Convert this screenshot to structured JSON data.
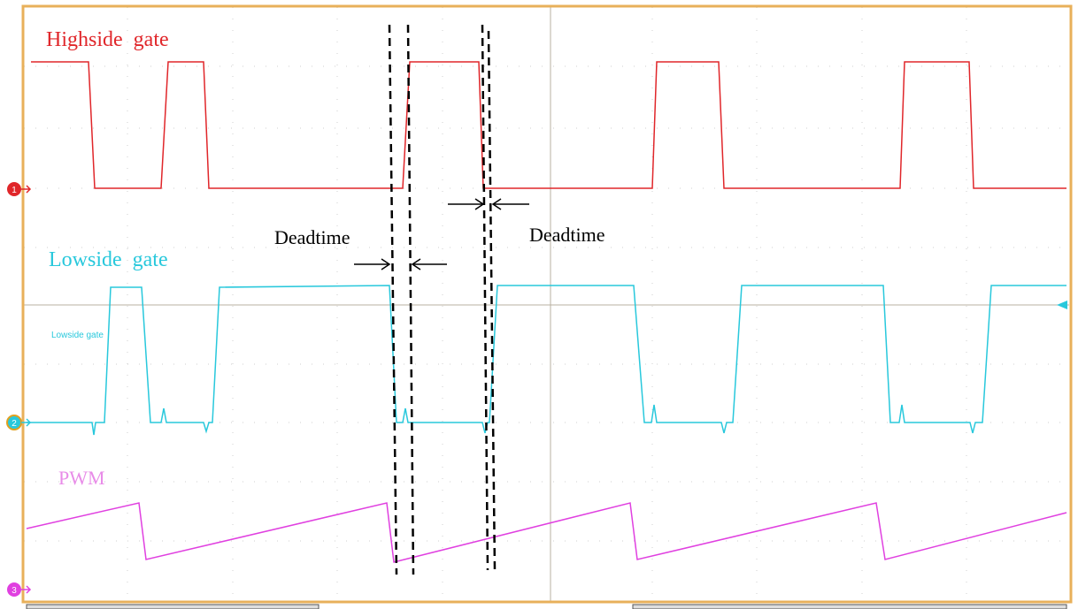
{
  "labels": {
    "highside": "Highside  gate",
    "lowside": "Lowside  gate",
    "lowside_small": "Lowside gate",
    "pwm": "PWM",
    "deadtime_left": "Deadtime",
    "deadtime_right": "Deadtime"
  },
  "channels": [
    "1",
    "2",
    "3"
  ]
}
